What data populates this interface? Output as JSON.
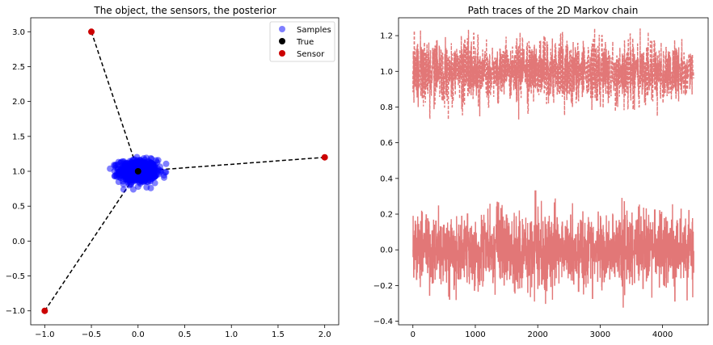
{
  "chart_data": [
    {
      "type": "scatter",
      "title": "The object, the sensors, the posterior",
      "xlabel": "",
      "ylabel": "",
      "xlim": [
        -1.15,
        2.15
      ],
      "ylim": [
        -1.2,
        3.2
      ],
      "xticks": [
        -1.0,
        -0.5,
        0.0,
        0.5,
        1.0,
        1.5,
        2.0
      ],
      "xtick_labels": [
        "−1.0",
        "−0.5",
        "0.0",
        "0.5",
        "1.0",
        "1.5",
        "2.0"
      ],
      "yticks": [
        -1.0,
        -0.5,
        0.0,
        0.5,
        1.0,
        1.5,
        2.0,
        2.5,
        3.0
      ],
      "ytick_labels": [
        "−1.0",
        "−0.5",
        "0.0",
        "0.5",
        "1.0",
        "1.5",
        "2.0",
        "2.5",
        "3.0"
      ],
      "legend_position": "top-right",
      "series": [
        {
          "name": "Samples",
          "color": "#0000ff",
          "alpha": 0.5,
          "center": [
            0.0,
            1.0
          ],
          "spread": [
            0.1,
            0.08
          ]
        },
        {
          "name": "True",
          "color": "#000000",
          "points": [
            [
              0.0,
              1.0
            ]
          ]
        },
        {
          "name": "Sensor",
          "color": "#cc0000",
          "points": [
            [
              -0.5,
              3.0
            ],
            [
              2.0,
              1.2
            ],
            [
              -1.0,
              -1.0
            ]
          ]
        }
      ],
      "dashed_lines": [
        {
          "from": [
            -0.5,
            3.0
          ],
          "to": [
            0.0,
            1.0
          ]
        },
        {
          "from": [
            2.0,
            1.2
          ],
          "to": [
            0.0,
            1.0
          ]
        },
        {
          "from": [
            -1.0,
            -1.0
          ],
          "to": [
            0.0,
            1.0
          ]
        }
      ]
    },
    {
      "type": "line",
      "title": "Path traces of the 2D Markov chain",
      "xlabel": "",
      "ylabel": "",
      "xlim": [
        -230,
        4730
      ],
      "ylim": [
        -0.42,
        1.3
      ],
      "xticks": [
        0,
        1000,
        2000,
        3000,
        4000
      ],
      "xtick_labels": [
        "0",
        "1000",
        "2000",
        "3000",
        "4000"
      ],
      "yticks": [
        -0.4,
        -0.2,
        0.0,
        0.2,
        0.4,
        0.6,
        0.8,
        1.0,
        1.2
      ],
      "ytick_labels": [
        "−0.4",
        "−0.2",
        "0.0",
        "0.2",
        "0.4",
        "0.6",
        "0.8",
        "1.0",
        "1.2"
      ],
      "n_samples": 4500,
      "series": [
        {
          "color": "#e07070",
          "style": "dashed",
          "mean": 1.0,
          "std": 0.08,
          "min": 0.73,
          "max": 1.24
        },
        {
          "color": "#e07070",
          "style": "solid",
          "mean": 0.0,
          "std": 0.1,
          "min": -0.34,
          "max": 0.33
        }
      ]
    }
  ]
}
